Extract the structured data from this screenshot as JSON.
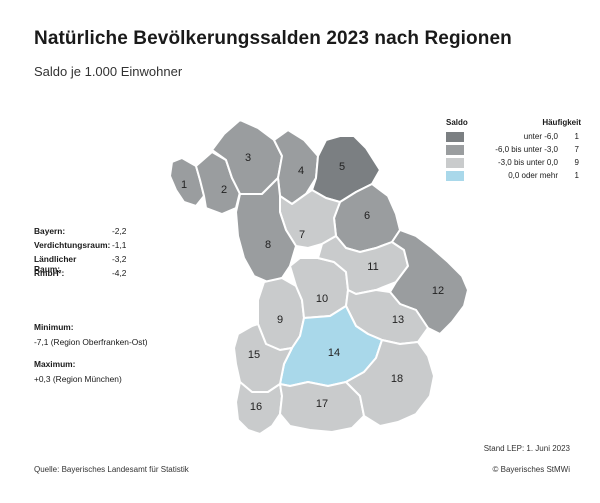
{
  "title": "Natürliche Bevölkerungssalden 2023 nach Regionen",
  "subtitle": "Saldo je 1.000 Einwohner",
  "stats": [
    {
      "label": "Bayern:",
      "value": "-2,2"
    },
    {
      "label": "Verdichtungsraum:",
      "value": "-1,1"
    },
    {
      "label": "Ländlicher Raum:",
      "value": "-3,2"
    },
    {
      "label": "RmbH²:",
      "value": "-4,2"
    }
  ],
  "minimum": {
    "label": "Minimum:",
    "value": "-7,1  (Region Oberfranken-Ost)"
  },
  "maximum": {
    "label": "Maximum:",
    "value": "+0,3  (Region München)"
  },
  "legend": {
    "title": "Saldo",
    "count_title": "Häufigkeit",
    "classes": [
      {
        "range": "unter  -6,0",
        "count": "1",
        "color": "#7b7f82"
      },
      {
        "range": "-6,0  bis unter  -3,0",
        "count": "7",
        "color": "#9a9d9f"
      },
      {
        "range": "-3,0  bis unter  0,0",
        "count": "9",
        "color": "#c9cbcc"
      },
      {
        "range": "0,0  oder mehr",
        "count": "1",
        "color": "#a9d8ea"
      }
    ]
  },
  "regions": [
    {
      "id": "1",
      "class": 1
    },
    {
      "id": "2",
      "class": 1
    },
    {
      "id": "3",
      "class": 1
    },
    {
      "id": "4",
      "class": 1
    },
    {
      "id": "5",
      "class": 0
    },
    {
      "id": "6",
      "class": 1
    },
    {
      "id": "7",
      "class": 2
    },
    {
      "id": "8",
      "class": 1
    },
    {
      "id": "9",
      "class": 2
    },
    {
      "id": "10",
      "class": 2
    },
    {
      "id": "11",
      "class": 2
    },
    {
      "id": "12",
      "class": 1
    },
    {
      "id": "13",
      "class": 2
    },
    {
      "id": "14",
      "class": 3
    },
    {
      "id": "15",
      "class": 2
    },
    {
      "id": "16",
      "class": 2
    },
    {
      "id": "17",
      "class": 2
    },
    {
      "id": "18",
      "class": 2
    }
  ],
  "footer": {
    "stand": "Stand LEP: 1. Juni 2023",
    "source": "Quelle: Bayerisches Landesamt für Statistik",
    "copyright": "© Bayerisches StMWi"
  }
}
